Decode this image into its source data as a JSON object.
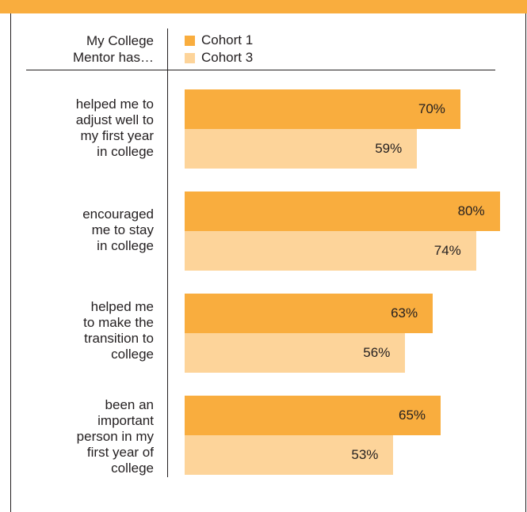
{
  "colors": {
    "accent": "#f9ad3e",
    "cohort1": "#f9ad3e",
    "cohort3": "#fdd49a"
  },
  "chart_data": {
    "type": "bar",
    "orientation": "horizontal",
    "header_label": "My College\nMentor has…",
    "categories": [
      "helped me to\nadjust well to\nmy first year\nin college",
      "encouraged\nme to stay\nin college",
      "helped me\nto make the\ntransition to\ncollege",
      "been an\nimportant\nperson in my\nfirst year of\ncollege"
    ],
    "series": [
      {
        "name": "Cohort 1",
        "values": [
          70,
          80,
          63,
          65
        ]
      },
      {
        "name": "Cohort 3",
        "values": [
          59,
          74,
          56,
          53
        ]
      }
    ],
    "value_suffix": "%",
    "legend_position": "top",
    "grid": false
  }
}
